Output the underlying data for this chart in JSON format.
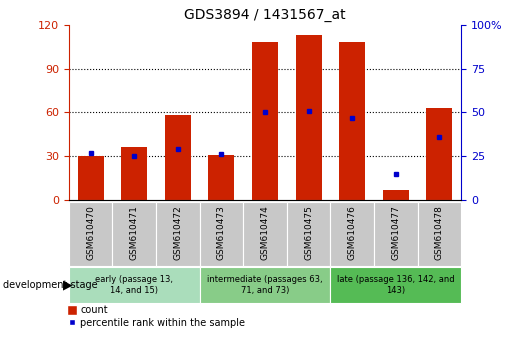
{
  "title": "GDS3894 / 1431567_at",
  "samples": [
    "GSM610470",
    "GSM610471",
    "GSM610472",
    "GSM610473",
    "GSM610474",
    "GSM610475",
    "GSM610476",
    "GSM610477",
    "GSM610478"
  ],
  "counts": [
    30,
    36,
    58,
    31,
    108,
    113,
    108,
    7,
    63
  ],
  "percentiles": [
    27,
    25,
    29,
    26,
    50,
    51,
    47,
    15,
    36
  ],
  "ylim_left": [
    0,
    120
  ],
  "ylim_right": [
    0,
    100
  ],
  "yticks_left": [
    0,
    30,
    60,
    90,
    120
  ],
  "yticks_right": [
    0,
    25,
    50,
    75,
    100
  ],
  "bar_color": "#CC2200",
  "marker_color": "#0000CC",
  "groups": [
    {
      "label": "early (passage 13,\n14, and 15)",
      "start": 0,
      "end": 3
    },
    {
      "label": "intermediate (passages 63,\n71, and 73)",
      "start": 3,
      "end": 6
    },
    {
      "label": "late (passage 136, 142, and\n143)",
      "start": 6,
      "end": 9
    }
  ],
  "group_colors": [
    "#AADDBB",
    "#88CC88",
    "#55BB55"
  ],
  "legend_count": "count",
  "legend_percentile": "percentile rank within the sample",
  "tick_label_color_left": "#CC2200",
  "tick_label_color_right": "#0000CC",
  "bg_xticklabel": "#CCCCCC",
  "xlabel_dev_stage": "development stage"
}
